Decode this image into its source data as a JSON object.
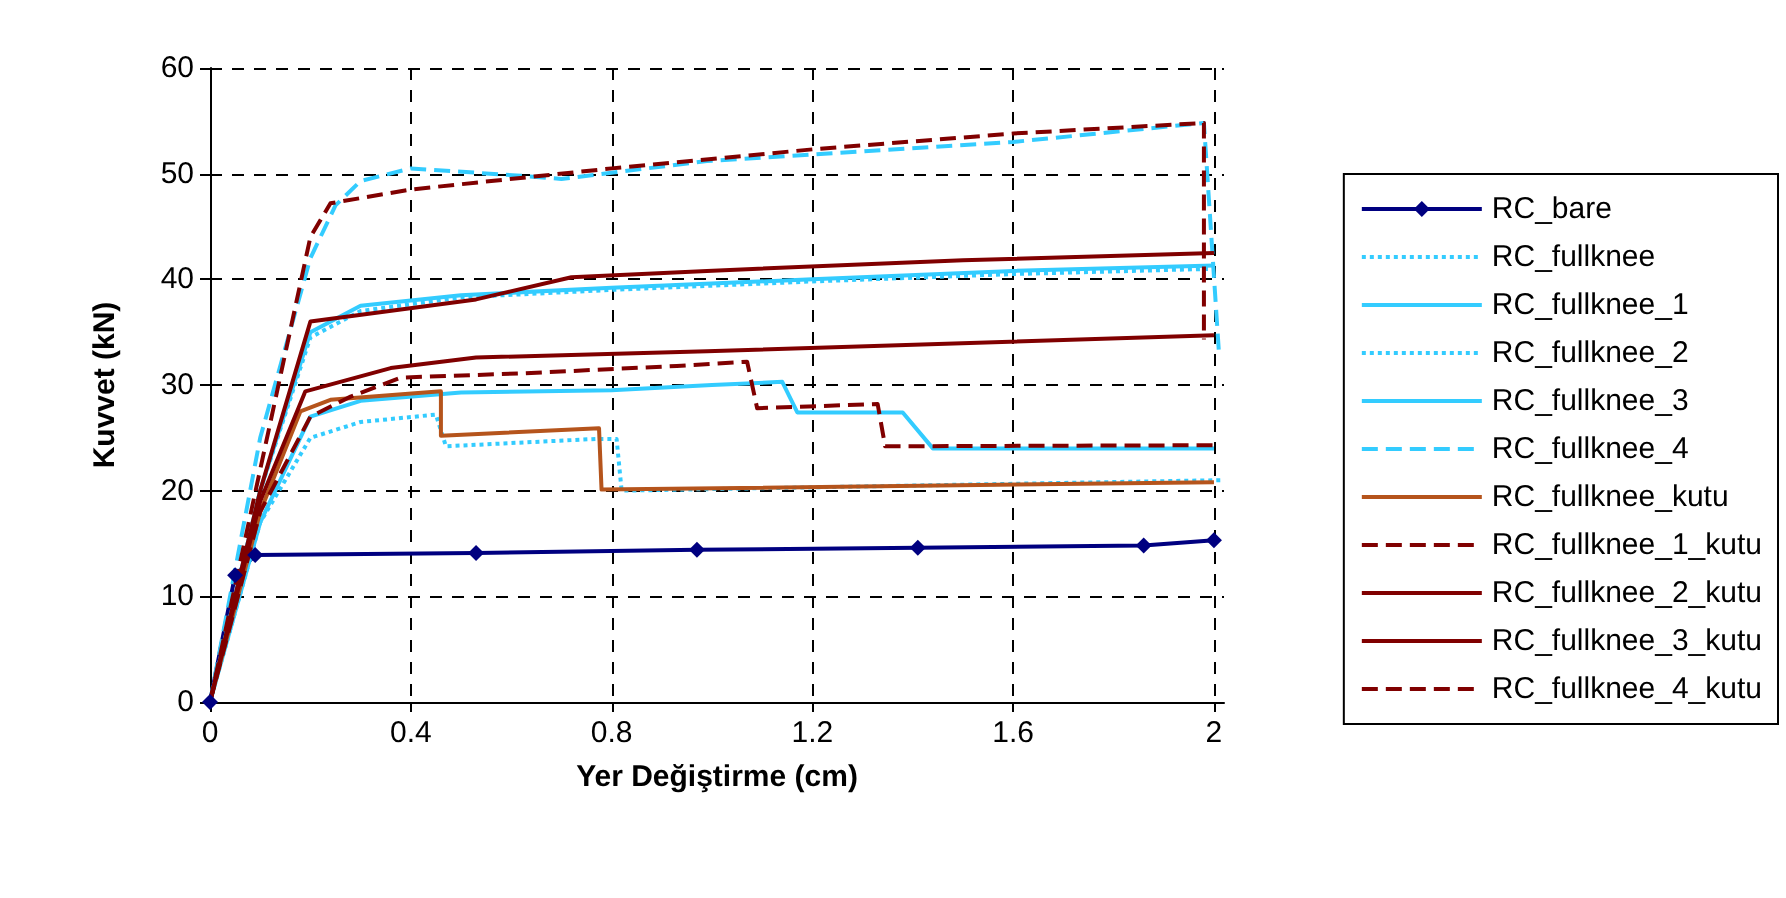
{
  "chart_data": {
    "type": "line",
    "xlabel": "Yer Değiştirme (cm)",
    "ylabel": "Kuvvet (kN)",
    "xlim": [
      0,
      2.02
    ],
    "xticks": [
      0,
      0.4,
      0.8,
      1.2,
      1.6,
      2
    ],
    "ylim": [
      0,
      60
    ],
    "yticks": [
      0,
      10,
      20,
      30,
      40,
      50,
      60
    ],
    "grid": true,
    "legend": "right",
    "series": [
      {
        "name": "RC_bare",
        "color": "#000080",
        "marker": "diamond",
        "line_style": "solid",
        "x": [
          0,
          0.05,
          0.09,
          0.53,
          0.97,
          1.41,
          1.86,
          2.0
        ],
        "values": [
          0,
          12,
          13.9,
          14.1,
          14.4,
          14.6,
          14.8,
          15.3
        ]
      },
      {
        "name": "RC_fullknee",
        "color": "#33ccff",
        "marker": "none",
        "line_style": "dotted",
        "x": [
          0,
          0.1,
          0.2,
          0.3,
          0.45,
          0.47,
          0.77,
          0.81,
          0.82,
          2.02
        ],
        "values": [
          0,
          17,
          25,
          26.5,
          27.2,
          24.2,
          24.9,
          24.9,
          20,
          21
        ]
      },
      {
        "name": "RC_fullknee_1",
        "color": "#33ccff",
        "marker": "none",
        "line_style": "solid",
        "x": [
          0,
          0.1,
          0.2,
          0.3,
          0.5,
          0.8,
          1.0,
          1.14,
          1.17,
          1.38,
          1.44,
          2.0
        ],
        "values": [
          0,
          17,
          27,
          28.5,
          29.3,
          29.5,
          30,
          30.3,
          27.4,
          27.4,
          24,
          24
        ]
      },
      {
        "name": "RC_fullknee_2",
        "color": "#33ccff",
        "marker": "none",
        "line_style": "dotted",
        "x": [
          0,
          0.1,
          0.2,
          0.3,
          0.5,
          0.8,
          1.2,
          1.6,
          2.0
        ],
        "values": [
          0,
          20,
          34.5,
          37,
          38.3,
          39,
          39.8,
          40.5,
          41
        ]
      },
      {
        "name": "RC_fullknee_3",
        "color": "#33ccff",
        "marker": "none",
        "line_style": "solid",
        "x": [
          0,
          0.1,
          0.2,
          0.3,
          0.5,
          0.8,
          1.2,
          1.6,
          2.0
        ],
        "values": [
          0,
          20,
          35,
          37.5,
          38.5,
          39.2,
          40,
          40.8,
          41.3
        ]
      },
      {
        "name": "RC_fullknee_4",
        "color": "#33ccff",
        "marker": "none",
        "line_style": "dashed",
        "x": [
          0,
          0.1,
          0.2,
          0.25,
          0.3,
          0.4,
          0.62,
          0.7,
          0.99,
          1.6,
          1.98,
          2.01
        ],
        "values": [
          0,
          25,
          42,
          47,
          49.3,
          50.5,
          49.8,
          49.5,
          51.2,
          53,
          54.8,
          33
        ]
      },
      {
        "name": "RC_fullknee_kutu",
        "color": "#b5541c",
        "marker": "none",
        "line_style": "solid",
        "x": [
          0,
          0.1,
          0.18,
          0.24,
          0.46,
          0.46,
          0.775,
          0.78,
          2.0
        ],
        "values": [
          0,
          18,
          27.5,
          28.6,
          29.4,
          25.2,
          25.9,
          20.1,
          20.8
        ]
      },
      {
        "name": "RC_fullknee_1_kutu",
        "color": "#800000",
        "marker": "none",
        "line_style": "dashed",
        "x": [
          0,
          0.1,
          0.2,
          0.28,
          0.38,
          0.62,
          0.93,
          1.07,
          1.09,
          1.33,
          1.345,
          2.0
        ],
        "values": [
          0,
          18,
          27,
          28.9,
          30.7,
          31.1,
          31.8,
          32.2,
          27.8,
          28.2,
          24.2,
          24.3
        ]
      },
      {
        "name": "RC_fullknee_2_kutu",
        "color": "#800000",
        "marker": "none",
        "line_style": "solid",
        "x": [
          0,
          0.1,
          0.19,
          0.36,
          0.53,
          0.99,
          2.0
        ],
        "values": [
          0,
          19,
          29.4,
          31.6,
          32.6,
          33.2,
          34.7
        ]
      },
      {
        "name": "RC_fullknee_3_kutu",
        "color": "#800000",
        "marker": "none",
        "line_style": "solid",
        "x": [
          0,
          0.1,
          0.2,
          0.53,
          0.72,
          0.99,
          1.5,
          2.0
        ],
        "values": [
          0,
          20,
          36,
          38.1,
          40.2,
          40.8,
          41.8,
          42.5
        ]
      },
      {
        "name": "RC_fullknee_4_kutu",
        "color": "#800000",
        "marker": "none",
        "line_style": "dashed",
        "x": [
          0,
          0.1,
          0.2,
          0.24,
          0.4,
          0.8,
          1.2,
          1.6,
          1.98,
          1.98
        ],
        "values": [
          0,
          22,
          44,
          47.2,
          48.5,
          50.5,
          52.3,
          53.8,
          54.8,
          34.3
        ]
      }
    ]
  }
}
